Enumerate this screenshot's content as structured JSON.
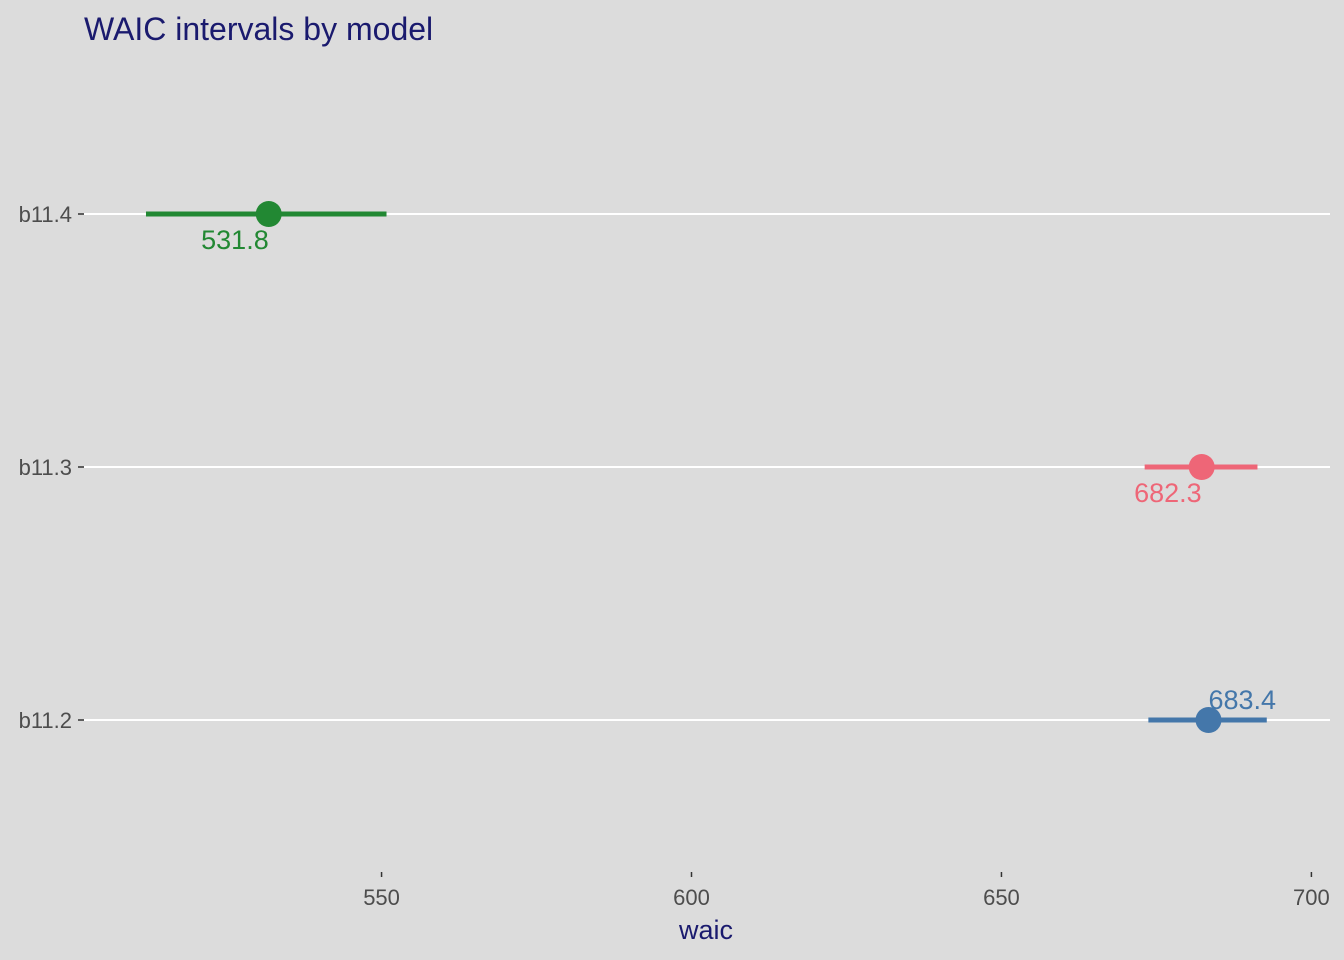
{
  "chart_data": {
    "type": "interval",
    "title": "WAIC intervals by model",
    "xlabel": "waic",
    "ylabel": "",
    "xlim": [
      502,
      703
    ],
    "x_ticks": [
      550,
      600,
      650,
      700
    ],
    "categories": [
      "b11.4",
      "b11.3",
      "b11.2"
    ],
    "series": [
      {
        "category": "b11.4",
        "value": 531.8,
        "label": "531.8",
        "lower": 512.0,
        "upper": 550.8,
        "color": "#228833",
        "label_position": "below-left"
      },
      {
        "category": "b11.3",
        "value": 682.3,
        "label": "682.3",
        "lower": 673.1,
        "upper": 691.3,
        "color": "#EE6677",
        "label_position": "below-left"
      },
      {
        "category": "b11.2",
        "value": 683.4,
        "label": "683.4",
        "lower": 673.7,
        "upper": 692.8,
        "color": "#4477AA",
        "label_position": "above-right"
      }
    ],
    "grid": "horizontal-major",
    "legend": "none"
  },
  "colors": {
    "background": "#dcdcdc",
    "grid": "#ffffff",
    "text": "#1a1a6e",
    "tick_text": "#4d4d4d"
  }
}
